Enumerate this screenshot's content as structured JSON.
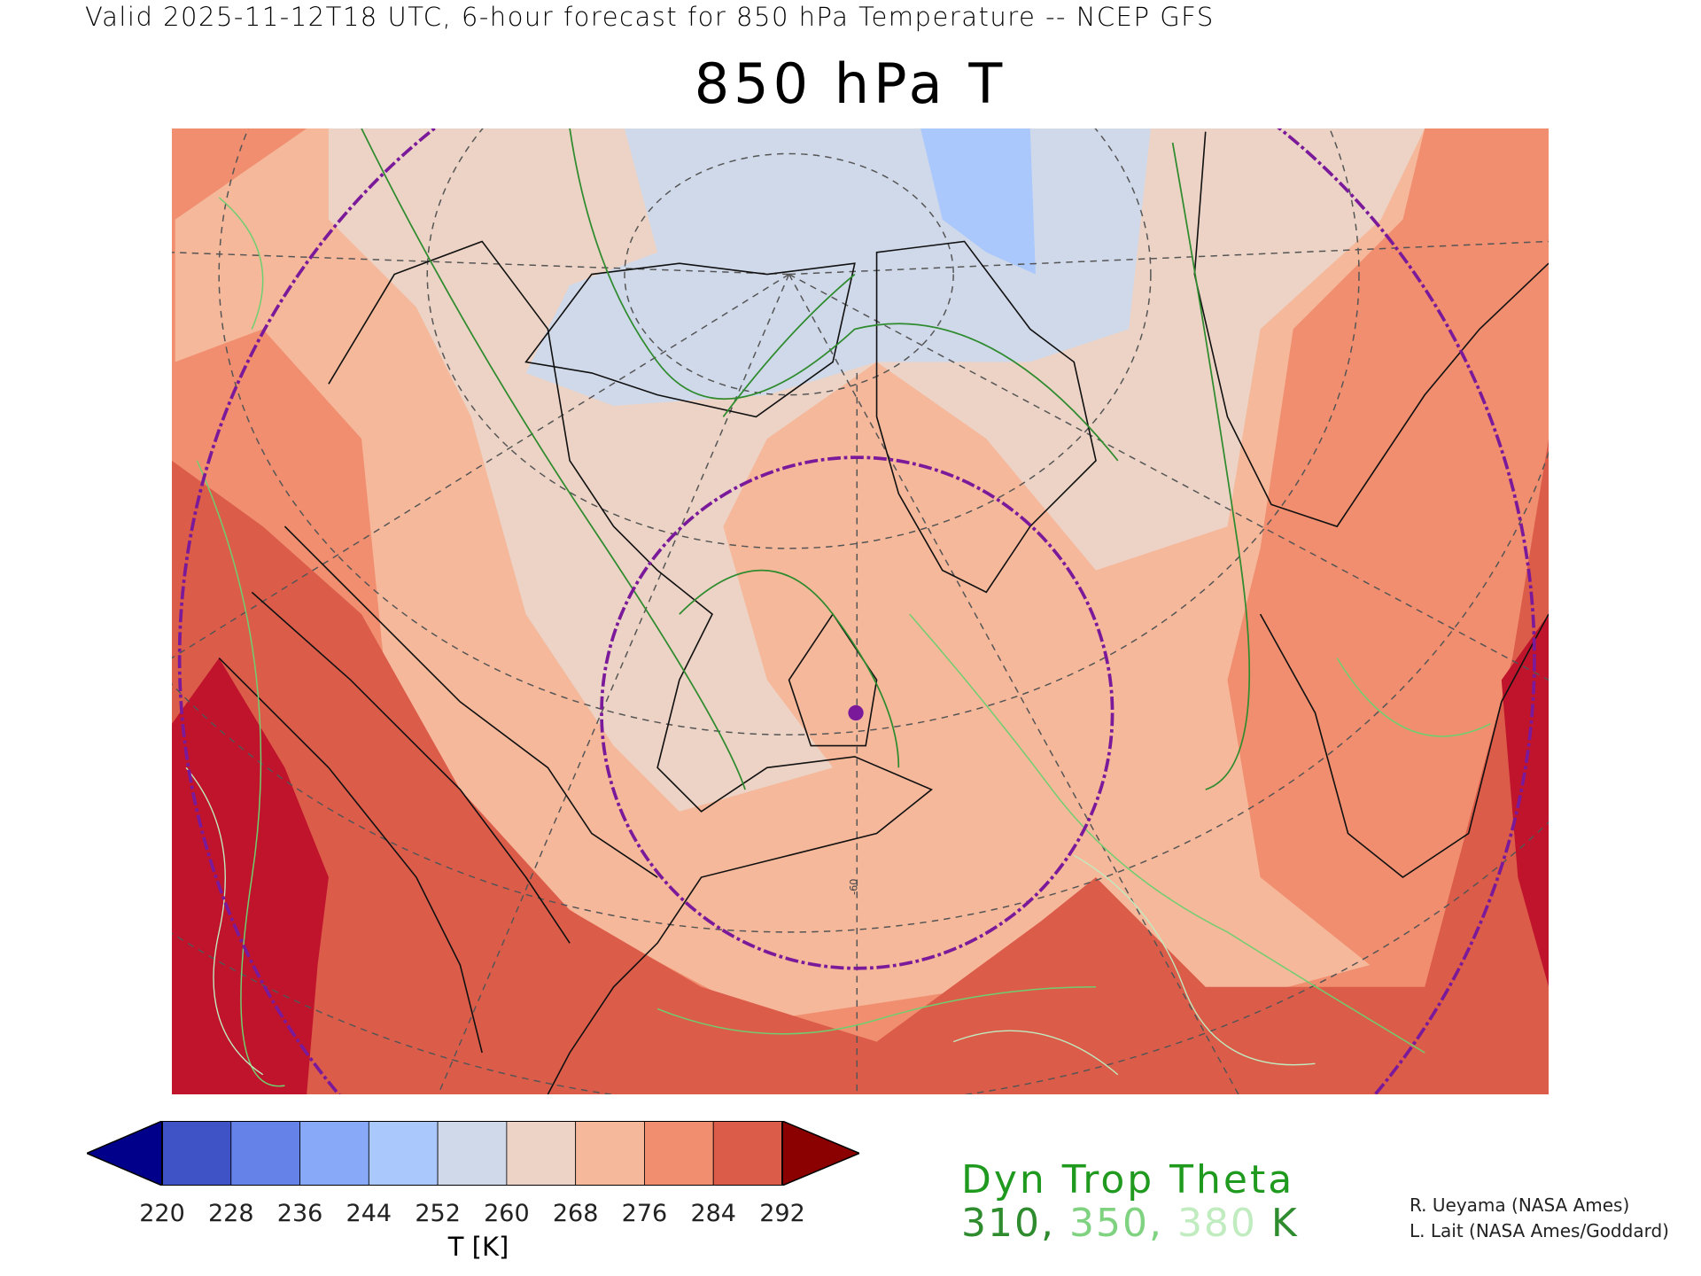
{
  "header": {
    "valid_line": "Valid 2025-11-12T18 UTC, 6-hour forecast for 850 hPa Temperature -- NCEP GFS",
    "title": "850 hPa T"
  },
  "map": {
    "meridian_label": "-60",
    "colors": {
      "deep_red": "#c0142c",
      "red": "#dc5c4a",
      "orange": "#f08e6f",
      "salmon": "#f5b89b",
      "light": "#ecd3c5",
      "bluegray": "#d0d9ea",
      "blue": "#abc8fc",
      "circle": "#7a1a9a",
      "contour_310": "#2e8b2e",
      "contour_350": "#6fce6f",
      "contour_380": "#b8eab8"
    }
  },
  "colorbar": {
    "labels": [
      "220",
      "228",
      "236",
      "244",
      "252",
      "260",
      "268",
      "276",
      "284",
      "292"
    ],
    "colors": [
      "#3f52c6",
      "#6482e8",
      "#88a9f8",
      "#abc8fc",
      "#d0d9ea",
      "#ecd3c5",
      "#f5b89b",
      "#f08e6f",
      "#dc5c4a"
    ],
    "under_color": "#00008b",
    "over_color": "#8b0000",
    "unit": "T [K]"
  },
  "legend": {
    "title": "Dyn Trop Theta",
    "level_310": "310",
    "sep1": ", ",
    "level_350": "350",
    "sep2": ", ",
    "level_380": "380",
    "unit": " K",
    "colors": [
      "#2e8b2e",
      "#7fd27f",
      "#c0ecc0"
    ]
  },
  "credits": [
    "R. Ueyama (NASA Ames)",
    "L. Lait (NASA Ames/Goddard)"
  ]
}
